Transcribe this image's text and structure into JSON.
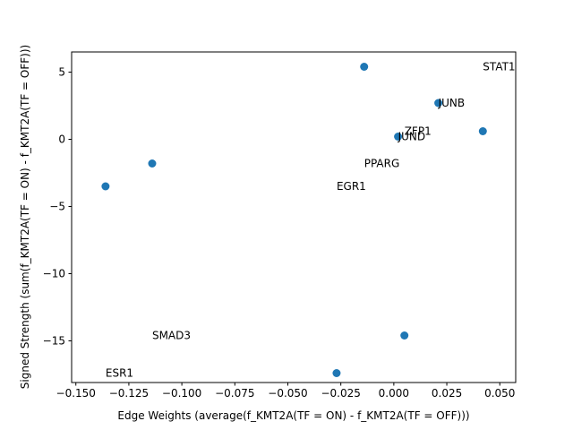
{
  "chart_data": {
    "type": "scatter",
    "title": "",
    "xlabel": "Edge Weights (average(f_KMT2A(TF = ON) - f_KMT2A(TF = OFF)))",
    "ylabel": "Signed Strength (sum(f_KMT2A(TF = ON) - f_KMT2A(TF = OFF)))",
    "xlim": [
      -0.152,
      0.0575
    ],
    "ylim": [
      -18.1,
      6.5
    ],
    "xticks": [
      -0.15,
      -0.125,
      -0.1,
      -0.075,
      -0.05,
      -0.025,
      0.0,
      0.025,
      0.05
    ],
    "xtick_labels": [
      "−0.150",
      "−0.125",
      "−0.100",
      "−0.075",
      "−0.050",
      "−0.025",
      "0.000",
      "0.025",
      "0.050"
    ],
    "yticks": [
      5,
      0,
      -5,
      -10,
      -15
    ],
    "ytick_labels": [
      "5",
      "0",
      "−5",
      "−10",
      "−15"
    ],
    "grid": false,
    "marker_color": "#1f77b4",
    "points": [
      {
        "x": -0.014,
        "y": 5.4
      },
      {
        "x": 0.021,
        "y": 2.7
      },
      {
        "x": 0.042,
        "y": 0.6
      },
      {
        "x": 0.002,
        "y": 0.2
      },
      {
        "x": -0.114,
        "y": -1.8
      },
      {
        "x": -0.136,
        "y": -3.5
      },
      {
        "x": 0.005,
        "y": -14.6
      },
      {
        "x": -0.027,
        "y": -17.4
      }
    ],
    "annotations": [
      {
        "text": "STAT1",
        "x": 0.042,
        "y": 5.4
      },
      {
        "text": "JUNB",
        "x": 0.021,
        "y": 2.7
      },
      {
        "text": "ZFP1",
        "x": 0.005,
        "y": 0.6
      },
      {
        "text": "JUND",
        "x": 0.002,
        "y": 0.2
      },
      {
        "text": "PPARG",
        "x": -0.014,
        "y": -1.8
      },
      {
        "text": "EGR1",
        "x": -0.027,
        "y": -3.5
      },
      {
        "text": "SMAD3",
        "x": -0.114,
        "y": -14.6
      },
      {
        "text": "ESR1",
        "x": -0.136,
        "y": -17.4
      }
    ]
  }
}
